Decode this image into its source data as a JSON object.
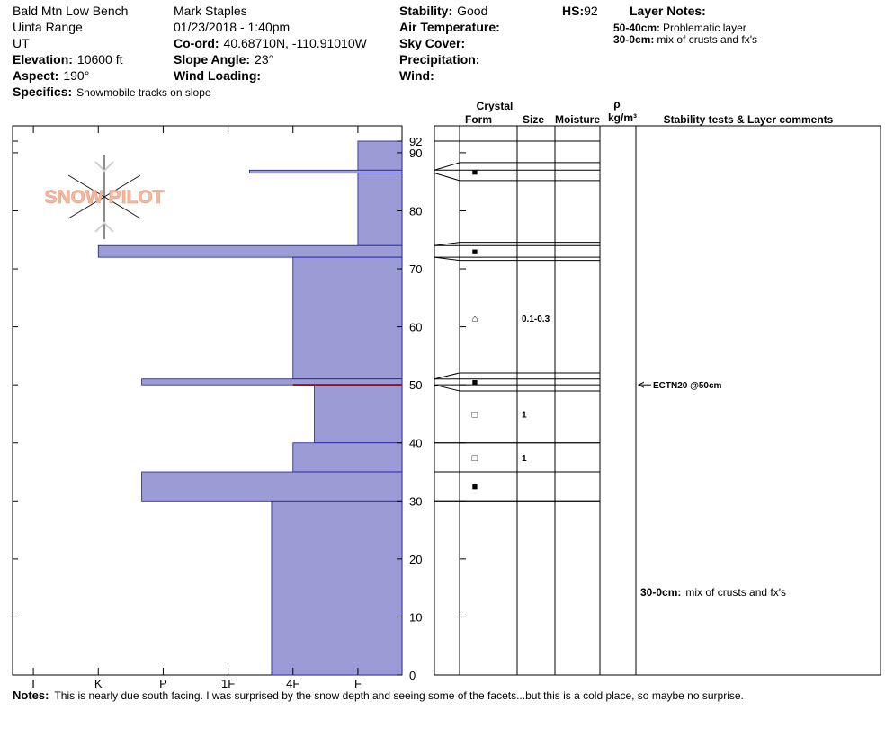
{
  "header": {
    "location": "Bald Mtn Low Bench",
    "range": "Uinta Range",
    "state": "UT",
    "elevation_label": "Elevation:",
    "elevation": "10600 ft",
    "aspect_label": "Aspect:",
    "aspect": "190°",
    "specifics_label": "Specifics:",
    "specifics": "Snowmobile tracks on slope",
    "observer": "Mark Staples",
    "datetime": "01/23/2018 - 1:40pm",
    "coord_label": "Co-ord:",
    "coord": "40.68710N, -110.91010W",
    "slope_label": "Slope Angle:",
    "slope": "23°",
    "wind_loading_label": "Wind Loading:",
    "stability_label": "Stability:",
    "stability": "Good",
    "hs_label": "HS:",
    "hs": 92,
    "air_temp_label": "Air Temperature:",
    "sky_label": "Sky Cover:",
    "precip_label": "Precipitation:",
    "wind_label": "Wind:",
    "layer_notes_label": "Layer Notes:",
    "layer_notes": [
      {
        "range": "50-40cm:",
        "text": "Problematic layer"
      },
      {
        "range": "30-0cm:",
        "text": "mix of crusts and fx's"
      }
    ]
  },
  "logo": "SNOW PILOT",
  "columns": {
    "crystal": "Crystal",
    "form": "Form",
    "size": "Size",
    "moisture": "Moisture",
    "rho": "ρ",
    "density_unit": "kg/m³",
    "comments": "Stability tests & Layer comments"
  },
  "chart_data": {
    "type": "profile",
    "xlim": [
      0.68,
      6.68
    ],
    "xticks": [
      {
        "value": 1,
        "label": "I"
      },
      {
        "value": 2,
        "label": "K"
      },
      {
        "value": 3,
        "label": "P"
      },
      {
        "value": 4,
        "label": "1F"
      },
      {
        "value": 5,
        "label": "4F"
      },
      {
        "value": 6,
        "label": "F"
      }
    ],
    "ylim": [
      0,
      92
    ],
    "yticks": [
      0,
      10,
      20,
      30,
      40,
      50,
      60,
      70,
      80,
      90,
      92
    ],
    "color": "#9b9bd6",
    "layers": [
      {
        "top": 92,
        "bottom": 87,
        "hardness": 6
      },
      {
        "top": 87,
        "bottom": 86.5,
        "hardness": 4.33,
        "form": "■"
      },
      {
        "top": 86.5,
        "bottom": 74,
        "hardness": 6
      },
      {
        "top": 74,
        "bottom": 72,
        "hardness": 2,
        "form": "■"
      },
      {
        "top": 72,
        "bottom": 51,
        "hardness": 5,
        "form": "⌂",
        "size": "0.1-0.3"
      },
      {
        "top": 51,
        "bottom": 50,
        "hardness": 2.67,
        "form": "■"
      },
      {
        "top": 50,
        "bottom": 40,
        "hardness": 5.33,
        "form": "□",
        "size": "1"
      },
      {
        "top": 40,
        "bottom": 35,
        "hardness": 5,
        "form": "□",
        "size": "1"
      },
      {
        "top": 35,
        "bottom": 30,
        "hardness": 2.67,
        "form": "■"
      },
      {
        "top": 30,
        "bottom": 0,
        "hardness": 4.67
      }
    ],
    "tests": [
      {
        "depth": 50,
        "label": "ECTN20 @50cm"
      }
    ],
    "comments": [
      {
        "top": 30,
        "bottom": 0
      }
    ]
  },
  "notes_label": "Notes:",
  "notes": "This is nearly due south facing. I was surprised by the snow depth and seeing some of the facets...but this is a cold place, so maybe no surprise."
}
